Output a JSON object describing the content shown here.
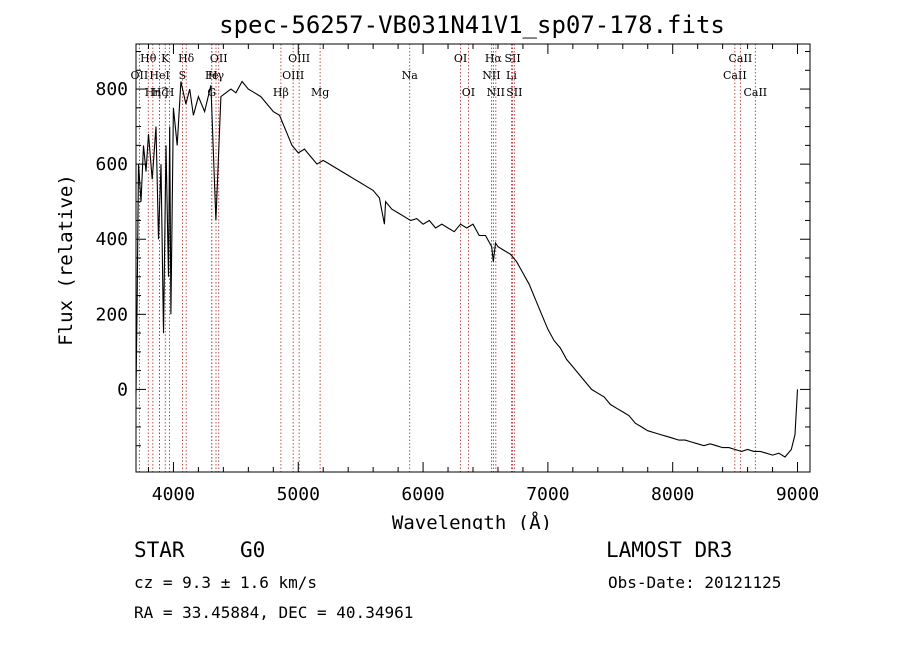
{
  "chart_data": {
    "type": "line",
    "title": "spec-56257-VB031N41V1_sp07-178.fits",
    "xlabel": "Wavelength (Å)",
    "ylabel": "Flux (relative)",
    "xlim": [
      3700,
      9100
    ],
    "ylim": [
      -220,
      920
    ],
    "xticks": [
      4000,
      5000,
      6000,
      7000,
      8000,
      9000
    ],
    "yticks": [
      0,
      200,
      400,
      600,
      800
    ],
    "series": [
      {
        "name": "flux",
        "x": [
          3700,
          3710,
          3720,
          3740,
          3760,
          3780,
          3800,
          3830,
          3860,
          3880,
          3900,
          3920,
          3940,
          3960,
          3970,
          3980,
          4000,
          4030,
          4060,
          4100,
          4130,
          4160,
          4200,
          4250,
          4300,
          4340,
          4380,
          4420,
          4460,
          4500,
          4550,
          4600,
          4650,
          4700,
          4750,
          4800,
          4850,
          4900,
          4950,
          5000,
          5050,
          5100,
          5150,
          5200,
          5250,
          5300,
          5350,
          5400,
          5450,
          5500,
          5550,
          5600,
          5650,
          5690,
          5700,
          5750,
          5800,
          5850,
          5900,
          5950,
          6000,
          6050,
          6100,
          6150,
          6200,
          6250,
          6300,
          6350,
          6400,
          6450,
          6500,
          6550,
          6563,
          6580,
          6600,
          6650,
          6700,
          6750,
          6800,
          6850,
          6900,
          6950,
          7000,
          7050,
          7100,
          7150,
          7200,
          7250,
          7300,
          7350,
          7400,
          7450,
          7500,
          7550,
          7600,
          7650,
          7700,
          7750,
          7800,
          7850,
          7900,
          7950,
          8000,
          8050,
          8100,
          8150,
          8200,
          8250,
          8300,
          8350,
          8400,
          8450,
          8500,
          8550,
          8600,
          8650,
          8700,
          8750,
          8800,
          8850,
          8900,
          8950,
          8980,
          9000
        ],
        "values": [
          -10,
          250,
          600,
          500,
          650,
          580,
          680,
          560,
          700,
          400,
          600,
          150,
          650,
          300,
          700,
          200,
          750,
          650,
          820,
          760,
          800,
          730,
          780,
          740,
          810,
          450,
          780,
          790,
          800,
          790,
          820,
          800,
          790,
          780,
          760,
          740,
          730,
          690,
          650,
          630,
          640,
          620,
          600,
          610,
          600,
          590,
          580,
          570,
          560,
          550,
          540,
          530,
          510,
          440,
          500,
          480,
          470,
          460,
          450,
          455,
          440,
          450,
          430,
          440,
          430,
          420,
          440,
          430,
          440,
          410,
          410,
          380,
          340,
          390,
          380,
          370,
          360,
          340,
          310,
          280,
          240,
          200,
          160,
          130,
          110,
          80,
          60,
          40,
          20,
          0,
          -10,
          -20,
          -40,
          -50,
          -60,
          -70,
          -90,
          -100,
          -110,
          -115,
          -120,
          -125,
          -130,
          -135,
          -135,
          -140,
          -145,
          -150,
          -145,
          -150,
          -155,
          -155,
          -160,
          -165,
          -160,
          -165,
          -165,
          -170,
          -175,
          -170,
          -180,
          -160,
          -120,
          0
        ]
      }
    ],
    "line_markers": [
      {
        "label": "Hθ",
        "wl": 3798,
        "row": 1
      },
      {
        "label": "OII",
        "wl": 3727,
        "row": 2
      },
      {
        "label": "Hη",
        "wl": 3835,
        "row": 3
      },
      {
        "label": "K",
        "wl": 3934,
        "row": 1
      },
      {
        "label": "HeI",
        "wl": 3889,
        "row": 2
      },
      {
        "label": "Hζ",
        "wl": 3889,
        "row": 3
      },
      {
        "label": "Hδ",
        "wl": 4102,
        "row": 1
      },
      {
        "label": "S",
        "wl": 4072,
        "row": 2
      },
      {
        "label": "H",
        "wl": 3969,
        "row": 3
      },
      {
        "label": "OII",
        "wl": 4363,
        "row": 1
      },
      {
        "label": "Fe",
        "wl": 4307,
        "row": 2
      },
      {
        "label": "G",
        "wl": 4307,
        "row": 3
      },
      {
        "label": "Hγ",
        "wl": 4341,
        "row": 2
      },
      {
        "label": "OIII",
        "wl": 5007,
        "row": 1
      },
      {
        "label": "OIII",
        "wl": 4959,
        "row": 2
      },
      {
        "label": "Hβ",
        "wl": 4861,
        "row": 3
      },
      {
        "label": "Mg",
        "wl": 5175,
        "row": 3
      },
      {
        "label": "Na",
        "wl": 5893,
        "row": 2
      },
      {
        "label": "OI",
        "wl": 6300,
        "row": 1
      },
      {
        "label": "OI",
        "wl": 6363,
        "row": 3
      },
      {
        "label": "Hα",
        "wl": 6563,
        "row": 1
      },
      {
        "label": "NII",
        "wl": 6548,
        "row": 2
      },
      {
        "label": "NII",
        "wl": 6583,
        "row": 3
      },
      {
        "label": "SII",
        "wl": 6717,
        "row": 1
      },
      {
        "label": "Li",
        "wl": 6708,
        "row": 2
      },
      {
        "label": "SII",
        "wl": 6731,
        "row": 3
      },
      {
        "label": "CaII",
        "wl": 8542,
        "row": 1
      },
      {
        "label": "CaII",
        "wl": 8498,
        "row": 2
      },
      {
        "label": "CaII",
        "wl": 8662,
        "row": 3
      }
    ]
  },
  "info": {
    "object_class": "STAR",
    "subclass": "G0",
    "survey": "LAMOST DR3",
    "cz": "cz = 9.3 ± 1.6 km/s",
    "obs_date": "Obs-Date: 20121125",
    "coords": "RA =  33.45884, DEC =  40.34961"
  }
}
